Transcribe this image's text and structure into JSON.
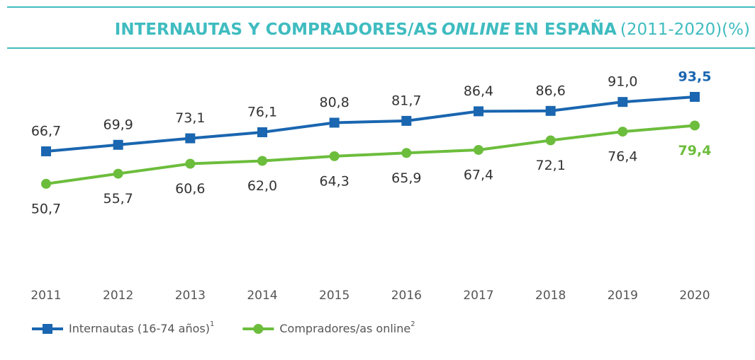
{
  "chart_data": {
    "type": "line",
    "title": [
      "INTERNAUTAS Y COMPRADORES/AS",
      "ONLINE",
      "EN ESPAÑA"
    ],
    "subtitle": "(2011-2020)(%)",
    "categories": [
      "2011",
      "2012",
      "2013",
      "2014",
      "2015",
      "2016",
      "2017",
      "2018",
      "2019",
      "2020"
    ],
    "ylim": [
      30,
      100
    ],
    "highlight_last": true,
    "series": [
      {
        "name": "Internautas (16-74 años)",
        "note": "1",
        "color": "#1a66b0",
        "marker": "square",
        "values": [
          66.7,
          69.9,
          73.1,
          76.1,
          80.8,
          81.7,
          86.4,
          86.6,
          91.0,
          93.5
        ],
        "value_labels": [
          "66,7",
          "69,9",
          "73,1",
          "76,1",
          "80,8",
          "81,7",
          "86,4",
          "86,6",
          "91,0",
          "93,5"
        ]
      },
      {
        "name": "Compradores/as online",
        "note": "2",
        "color": "#6cbd3c",
        "marker": "circle",
        "values": [
          50.7,
          55.7,
          60.6,
          62.0,
          64.3,
          65.9,
          67.4,
          72.1,
          76.4,
          79.4
        ],
        "value_labels": [
          "50,7",
          "55,7",
          "60,6",
          "62,0",
          "64,3",
          "65,9",
          "67,4",
          "72,1",
          "76,4",
          "79,4"
        ]
      }
    ]
  }
}
